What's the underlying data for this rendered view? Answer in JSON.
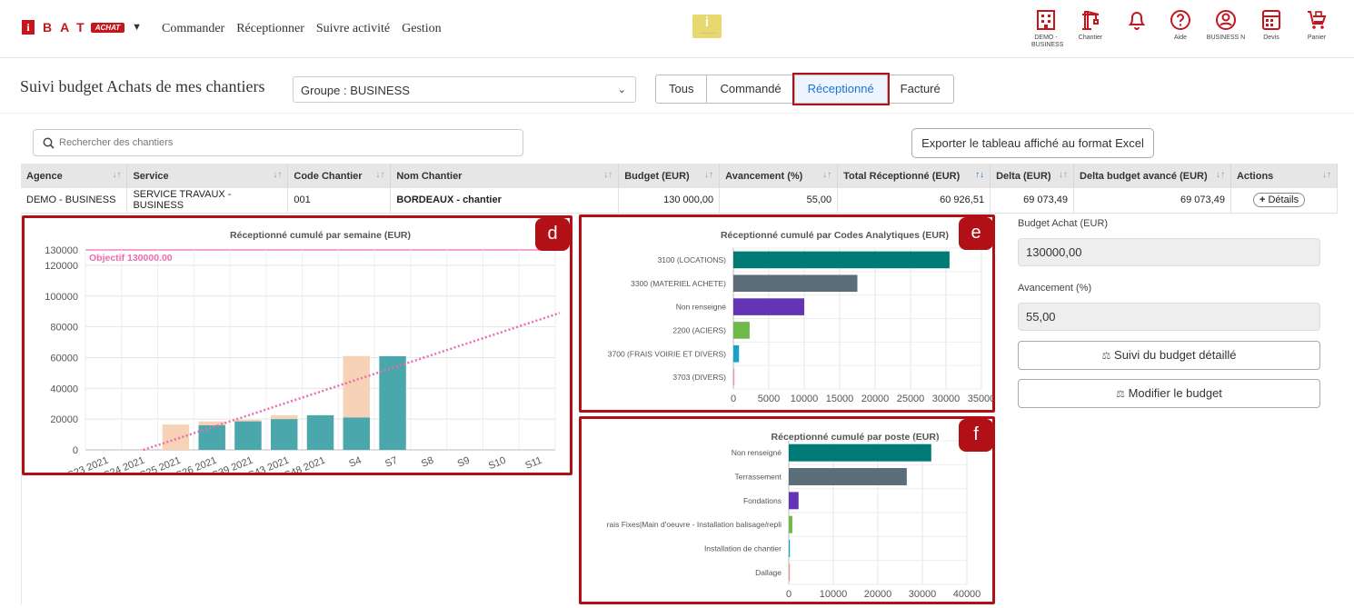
{
  "header": {
    "brand_i": "i",
    "brand_letters": "BAT",
    "brand_tag": "ACHAT",
    "nav": [
      "Commander",
      "Réceptionner",
      "Suivre activité",
      "Gestion"
    ],
    "center_logo_letter": "i",
    "icons": [
      {
        "name": "building-icon",
        "label": "DEMO - BUSINESS"
      },
      {
        "name": "crane-icon",
        "label": "Chantier"
      },
      {
        "name": "bell-icon",
        "label": ""
      },
      {
        "name": "help-icon",
        "label": "Aide"
      },
      {
        "name": "user-icon",
        "label": "BUSINESS N"
      },
      {
        "name": "calculator-icon",
        "label": "Devis"
      },
      {
        "name": "cart-icon",
        "label": "Panier"
      }
    ]
  },
  "page": {
    "title": "Suivi budget Achats de mes chantiers",
    "group_select": "Groupe : BUSINESS",
    "tabs": [
      "Tous",
      "Commandé",
      "Réceptionné",
      "Facturé"
    ],
    "active_tab": "Réceptionné",
    "search_placeholder": "Rechercher des chantiers",
    "export_label": "Exporter le tableau affiché au format Excel"
  },
  "table": {
    "columns": [
      "Agence",
      "Service",
      "Code Chantier",
      "Nom Chantier",
      "Budget (EUR)",
      "Avancement (%)",
      "Total Réceptionné (EUR)",
      "Delta (EUR)",
      "Delta budget avancé (EUR)",
      "Actions"
    ],
    "rows": [
      {
        "agence": "DEMO - BUSINESS",
        "service": "SERVICE TRAVAUX - BUSINESS",
        "code": "001",
        "nom": "BORDEAUX - chantier",
        "budget": "130 000,00",
        "avancement": "55,00",
        "total": "60 926,51",
        "delta": "69 073,49",
        "delta_avance": "69 073,49",
        "action": "Détails"
      }
    ]
  },
  "details": {
    "budget_label": "Budget Achat (EUR)",
    "budget_value": "130000,00",
    "avancement_label": "Avancement (%)",
    "avancement_value": "55,00",
    "btn_detail": "Suivi du budget détaillé",
    "btn_modify": "Modifier le budget"
  },
  "badges": {
    "d": "d",
    "e": "e",
    "f": "f"
  },
  "chart_data": [
    {
      "type": "bar",
      "title": "Réceptionné cumulé par semaine (EUR)",
      "objective_label": "Objectif 130000.00",
      "objective_value": 130000,
      "categories": [
        "S23 2021",
        "S24 2021",
        "S25 2021",
        "S26 2021",
        "S39 2021",
        "S43 2021",
        "S48 2021",
        "S4",
        "S7",
        "S8",
        "S9",
        "S10",
        "S11"
      ],
      "series": [
        {
          "name": "",
          "color": "#4aa7ab",
          "values": [
            0,
            0,
            0,
            16000,
            18500,
            20000,
            22500,
            21000,
            60926,
            0,
            0,
            0,
            0
          ]
        },
        {
          "name": "",
          "color": "#f7d2b6",
          "values": [
            0,
            0,
            16500,
            18500,
            19500,
            22500,
            22500,
            61000,
            0,
            0,
            0,
            0,
            0
          ]
        }
      ],
      "trend": {
        "color": "#e96db0",
        "from": 0,
        "to": 89000
      },
      "ylim": [
        0,
        130000
      ],
      "yticks": [
        0,
        20000,
        40000,
        60000,
        80000,
        100000,
        120000,
        130000
      ]
    },
    {
      "type": "bar",
      "orientation": "horizontal",
      "title": "Réceptionné cumulé par Codes Analytiques (EUR)",
      "categories": [
        "3100 (LOCATIONS)",
        "3300 (MATERIEL ACHETE)",
        "Non renseigné",
        "2200 (ACIERS)",
        "3700 (FRAIS VOIRIE ET DIVERS)",
        "3703 (DIVERS)"
      ],
      "values": [
        30500,
        17500,
        10000,
        2300,
        800,
        150
      ],
      "colors": [
        "#007a75",
        "#5a6d78",
        "#6534b5",
        "#71b84a",
        "#17a3c8",
        "#e39a9a"
      ],
      "xlim": [
        0,
        35000
      ],
      "xticks": [
        0,
        5000,
        10000,
        15000,
        20000,
        25000,
        30000,
        35000
      ]
    },
    {
      "type": "bar",
      "orientation": "horizontal",
      "title": "Réceptionné cumulé par poste (EUR)",
      "categories": [
        "Non renseigné",
        "Terrassement",
        "Fondations",
        "rais Fixes|Main d'oeuvre - Installation balisage/repli",
        "Installation de chantier",
        "Dallage"
      ],
      "values": [
        32000,
        26500,
        2200,
        800,
        250,
        80
      ],
      "colors": [
        "#007a75",
        "#5a6d78",
        "#6534b5",
        "#71b84a",
        "#17a3c8",
        "#e39a9a"
      ],
      "xlim": [
        0,
        40000
      ],
      "xticks": [
        0,
        10000,
        20000,
        30000,
        40000
      ]
    }
  ]
}
